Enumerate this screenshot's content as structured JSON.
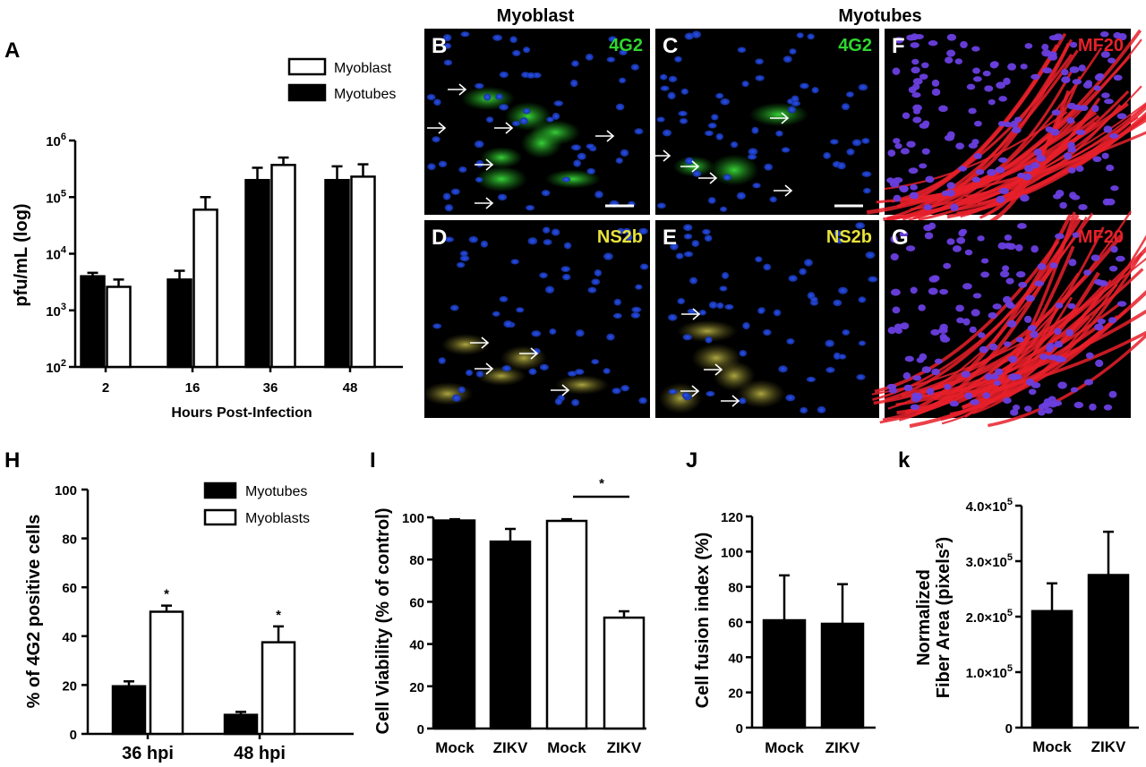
{
  "colors": {
    "myotubes": "#000000",
    "myoblast": "#ffffff",
    "nuclei": "#1c3fd8",
    "stain_4g2": "#2fd62f",
    "stain_ns2b": "#e8e23c",
    "stain_mf20": "#e8202a",
    "arrow": "#ffffff"
  },
  "figure": {
    "group_titles": {
      "myoblast": "Myoblast",
      "myotubes": "Myotubes"
    },
    "micrographs": [
      {
        "panel": "B",
        "stain": "4G2",
        "group": "myoblast",
        "scale_bar": true
      },
      {
        "panel": "C",
        "stain": "4G2",
        "group": "myotubes",
        "scale_bar": true
      },
      {
        "panel": "F",
        "stain": "MF20",
        "group": "myotubes",
        "scale_bar": false
      },
      {
        "panel": "D",
        "stain": "NS2b",
        "group": "myoblast",
        "scale_bar": false
      },
      {
        "panel": "E",
        "stain": "NS2b",
        "group": "myotubes",
        "scale_bar": false
      },
      {
        "panel": "G",
        "stain": "MF20",
        "group": "myotubes",
        "scale_bar": false
      }
    ]
  },
  "chart_data": [
    {
      "panel": "A",
      "type": "bar",
      "categories": [
        "2",
        "16",
        "36",
        "48"
      ],
      "xlabel": "Hours Post-Infection",
      "ylabel": "pfu/mL (log)",
      "yscale": "log",
      "ylim": [
        100,
        1000000
      ],
      "ytick_labels": [
        [
          "10",
          "2"
        ],
        [
          "10",
          "3"
        ],
        [
          "10",
          "4"
        ],
        [
          "10",
          "5"
        ],
        [
          "10",
          "6"
        ]
      ],
      "legend": "top-right",
      "series": [
        {
          "name": "Myotubes",
          "values": [
            4000,
            3500,
            200000,
            200000
          ],
          "errors": [
            600,
            1500,
            130000,
            150000
          ]
        },
        {
          "name": "Myoblast",
          "values": [
            2600,
            60000,
            370000,
            230000
          ],
          "errors": [
            900,
            40000,
            130000,
            150000
          ]
        }
      ],
      "legend_order": [
        "Myoblast",
        "Myotubes"
      ]
    },
    {
      "panel": "H",
      "type": "bar",
      "categories": [
        "36 hpi",
        "48 hpi"
      ],
      "ylabel": "% of 4G2 positive cells",
      "ylim": [
        0,
        100
      ],
      "yticks": [
        "0",
        "20",
        "40",
        "60",
        "80",
        "100"
      ],
      "legend": "top-right",
      "series": [
        {
          "name": "Myotubes",
          "values": [
            19.5,
            7.8
          ],
          "errors": [
            2.0,
            1.2
          ]
        },
        {
          "name": "Myoblasts",
          "values": [
            50,
            37.5
          ],
          "errors": [
            2.5,
            6.5
          ]
        }
      ],
      "significance": [
        "*",
        "*"
      ]
    },
    {
      "panel": "I",
      "type": "bar",
      "categories": [
        "Mock",
        "ZIKV",
        "Mock",
        "ZIKV"
      ],
      "ylabel": "Cell Viability (% of control)",
      "ylim": [
        0,
        100
      ],
      "yticks": [
        "0",
        "20",
        "40",
        "60",
        "80",
        "100"
      ],
      "values": [
        98.5,
        88.5,
        98.3,
        52.5
      ],
      "errors": [
        0.6,
        6.0,
        0.8,
        3.0
      ],
      "fills": [
        "myotubes",
        "myotubes",
        "myoblast",
        "myoblast"
      ],
      "significance": "*"
    },
    {
      "panel": "J",
      "type": "bar",
      "categories": [
        "Mock",
        "ZIKV"
      ],
      "ylabel": "Cell fusion index (%)",
      "ylim": [
        0,
        120
      ],
      "yticks": [
        "0",
        "20",
        "40",
        "60",
        "80",
        "100",
        "120"
      ],
      "values": [
        61,
        59
      ],
      "errors": [
        25.5,
        22.5
      ]
    },
    {
      "panel": "k",
      "type": "bar",
      "categories": [
        "Mock",
        "ZIKV"
      ],
      "ylabel_lines": [
        "Normalized",
        "Fiber Area (pixels²)"
      ],
      "ylim": [
        0,
        400000
      ],
      "yticks": [
        [
          "0",
          ""
        ],
        [
          "1.0×10",
          "5"
        ],
        [
          "2.0×10",
          "5"
        ],
        [
          "3.0×10",
          "5"
        ],
        [
          "4.0×10",
          "5"
        ]
      ],
      "values": [
        210000,
        275000
      ],
      "errors": [
        50000,
        78000
      ]
    }
  ]
}
